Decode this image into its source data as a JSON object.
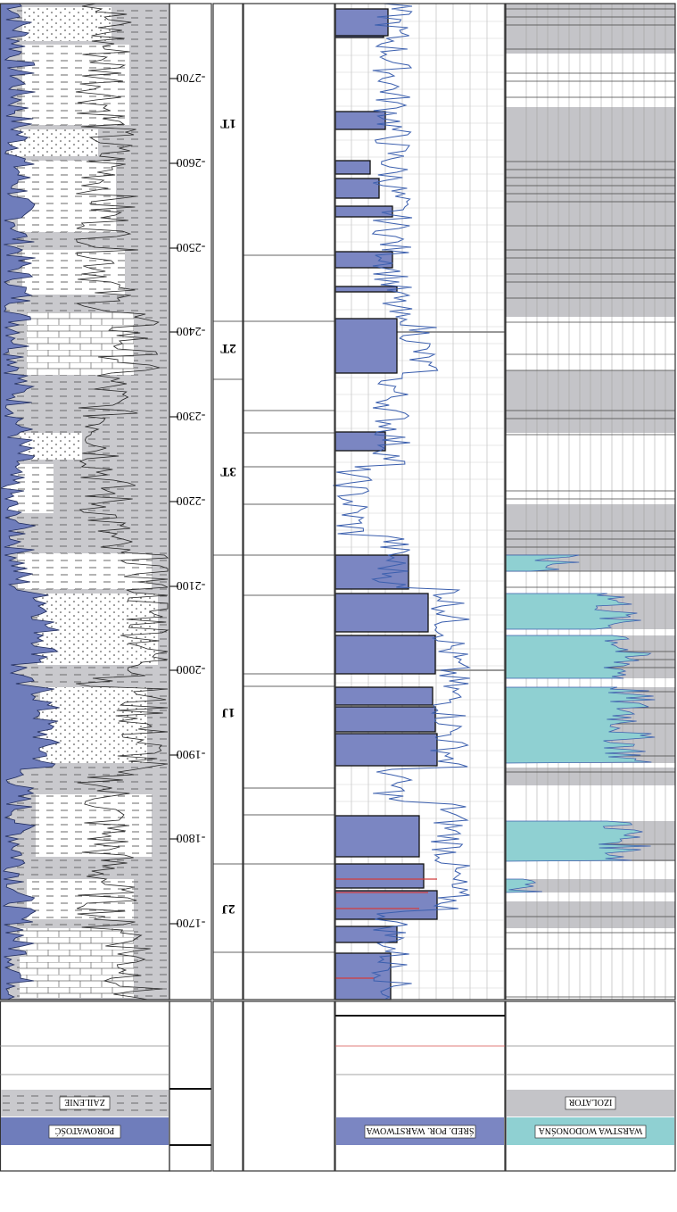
{
  "depth_ticks": [
    "-1700",
    "-1800",
    "-1900",
    "-2000",
    "-2100",
    "-2200",
    "-2300",
    "-2400",
    "-2500",
    "-2600",
    "-2700"
  ],
  "zones": [
    "2J",
    "1J",
    "3T",
    "2T",
    "1T"
  ],
  "legend": {
    "porosity": "POROWATOŚĆ",
    "shale": "ZAILENIE",
    "layer_porosity": "ŚRED. POR. WARSTWOWA",
    "water_layer": "WARSTWA WODONOŚNA",
    "insulator": "IZOLATOR"
  },
  "colors": {
    "porosity_fill": "#6f7dbb",
    "shale_fill": "#c9c9cd",
    "layer_fill": "#7b86c2",
    "water_fill": "#8fd0d2",
    "insulator_fill": "#c4c4c8",
    "curve": "#3b5fae",
    "grid": "#9a9a9a"
  }
}
